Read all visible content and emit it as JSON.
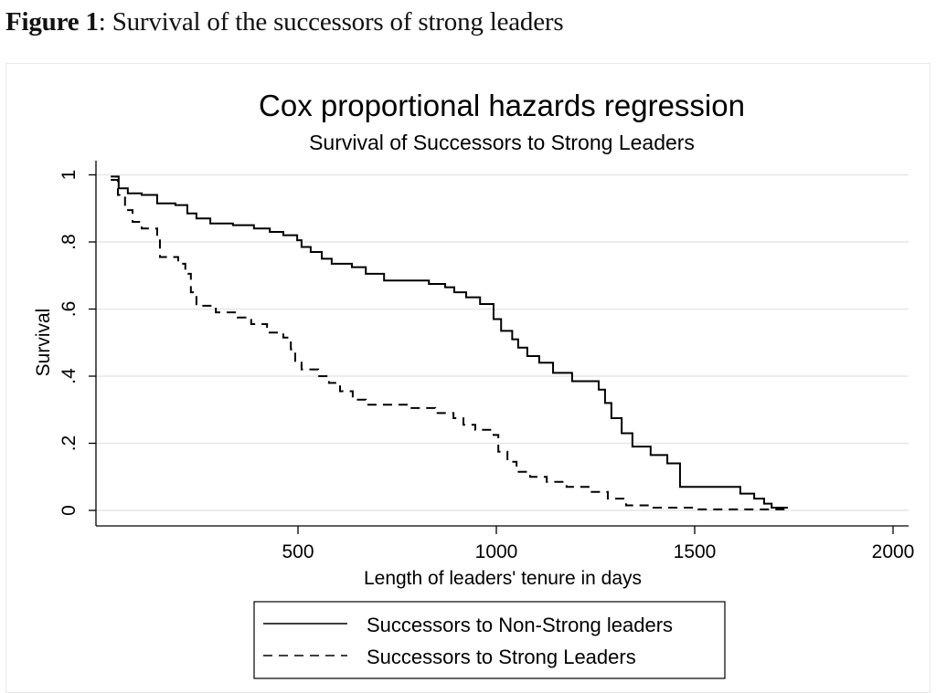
{
  "figure": {
    "caption_label": "Figure 1",
    "caption_text": ": Survival of the successors of strong leaders"
  },
  "chart_data": {
    "type": "line",
    "subtype": "step",
    "title": "Cox proportional hazards regression",
    "subtitle": "Survival of Successors to Strong Leaders",
    "xlabel": "Length of leaders' tenure in days",
    "ylabel": "Survival",
    "xlim": [
      0,
      2000
    ],
    "ylim": [
      0,
      1
    ],
    "xticks": [
      500,
      1000,
      1500,
      2000
    ],
    "xtick_labels": [
      "500",
      "1000",
      "1500",
      "2000"
    ],
    "yticks": [
      0,
      0.2,
      0.4,
      0.6,
      0.8,
      1
    ],
    "ytick_labels": [
      "0",
      ".2",
      ".4",
      ".6",
      ".8",
      "1"
    ],
    "grid": true,
    "legend_position": "bottom",
    "series": [
      {
        "name": "Successors to Non-Strong leaders",
        "style": "solid",
        "color": "#000000",
        "x": [
          28,
          48,
          71,
          106,
          145,
          191,
          221,
          244,
          279,
          336,
          389,
          429,
          463,
          498,
          509,
          532,
          560,
          585,
          636,
          671,
          717,
          830,
          871,
          894,
          924,
          959,
          993,
          1012,
          1040,
          1055,
          1078,
          1108,
          1143,
          1191,
          1258,
          1274,
          1290,
          1316,
          1343,
          1389,
          1431,
          1463,
          1615,
          1650,
          1675,
          1694,
          1735
        ],
        "y": [
          0.995,
          0.96,
          0.945,
          0.94,
          0.915,
          0.91,
          0.885,
          0.87,
          0.855,
          0.85,
          0.84,
          0.83,
          0.82,
          0.805,
          0.785,
          0.77,
          0.75,
          0.735,
          0.725,
          0.705,
          0.685,
          0.675,
          0.665,
          0.65,
          0.635,
          0.615,
          0.57,
          0.535,
          0.51,
          0.485,
          0.46,
          0.44,
          0.41,
          0.385,
          0.36,
          0.32,
          0.275,
          0.23,
          0.19,
          0.165,
          0.14,
          0.07,
          0.05,
          0.035,
          0.02,
          0.008,
          0.008
        ]
      },
      {
        "name": "Successors to Strong Leaders",
        "style": "dashed",
        "color": "#000000",
        "x": [
          28,
          46,
          64,
          83,
          106,
          145,
          152,
          198,
          216,
          230,
          244,
          293,
          348,
          382,
          422,
          463,
          482,
          493,
          509,
          551,
          578,
          606,
          638,
          671,
          781,
          846,
          892,
          917,
          947,
          993,
          1005,
          1028,
          1051,
          1085,
          1127,
          1177,
          1235,
          1281,
          1327,
          1396,
          1500,
          1735
        ],
        "y": [
          0.985,
          0.94,
          0.895,
          0.86,
          0.84,
          0.815,
          0.755,
          0.735,
          0.705,
          0.65,
          0.61,
          0.59,
          0.575,
          0.555,
          0.53,
          0.515,
          0.48,
          0.44,
          0.42,
          0.4,
          0.38,
          0.355,
          0.33,
          0.315,
          0.305,
          0.29,
          0.275,
          0.255,
          0.24,
          0.225,
          0.175,
          0.145,
          0.115,
          0.1,
          0.085,
          0.07,
          0.055,
          0.035,
          0.015,
          0.008,
          0.003,
          0.002
        ]
      }
    ],
    "legend": [
      {
        "label": "Successors to Non-Strong leaders",
        "style": "solid"
      },
      {
        "label": "Successors to Strong Leaders",
        "style": "dashed"
      }
    ],
    "colors": {
      "grid": "#e6e6e6",
      "axis": "#000000",
      "background": "#ffffff"
    }
  }
}
